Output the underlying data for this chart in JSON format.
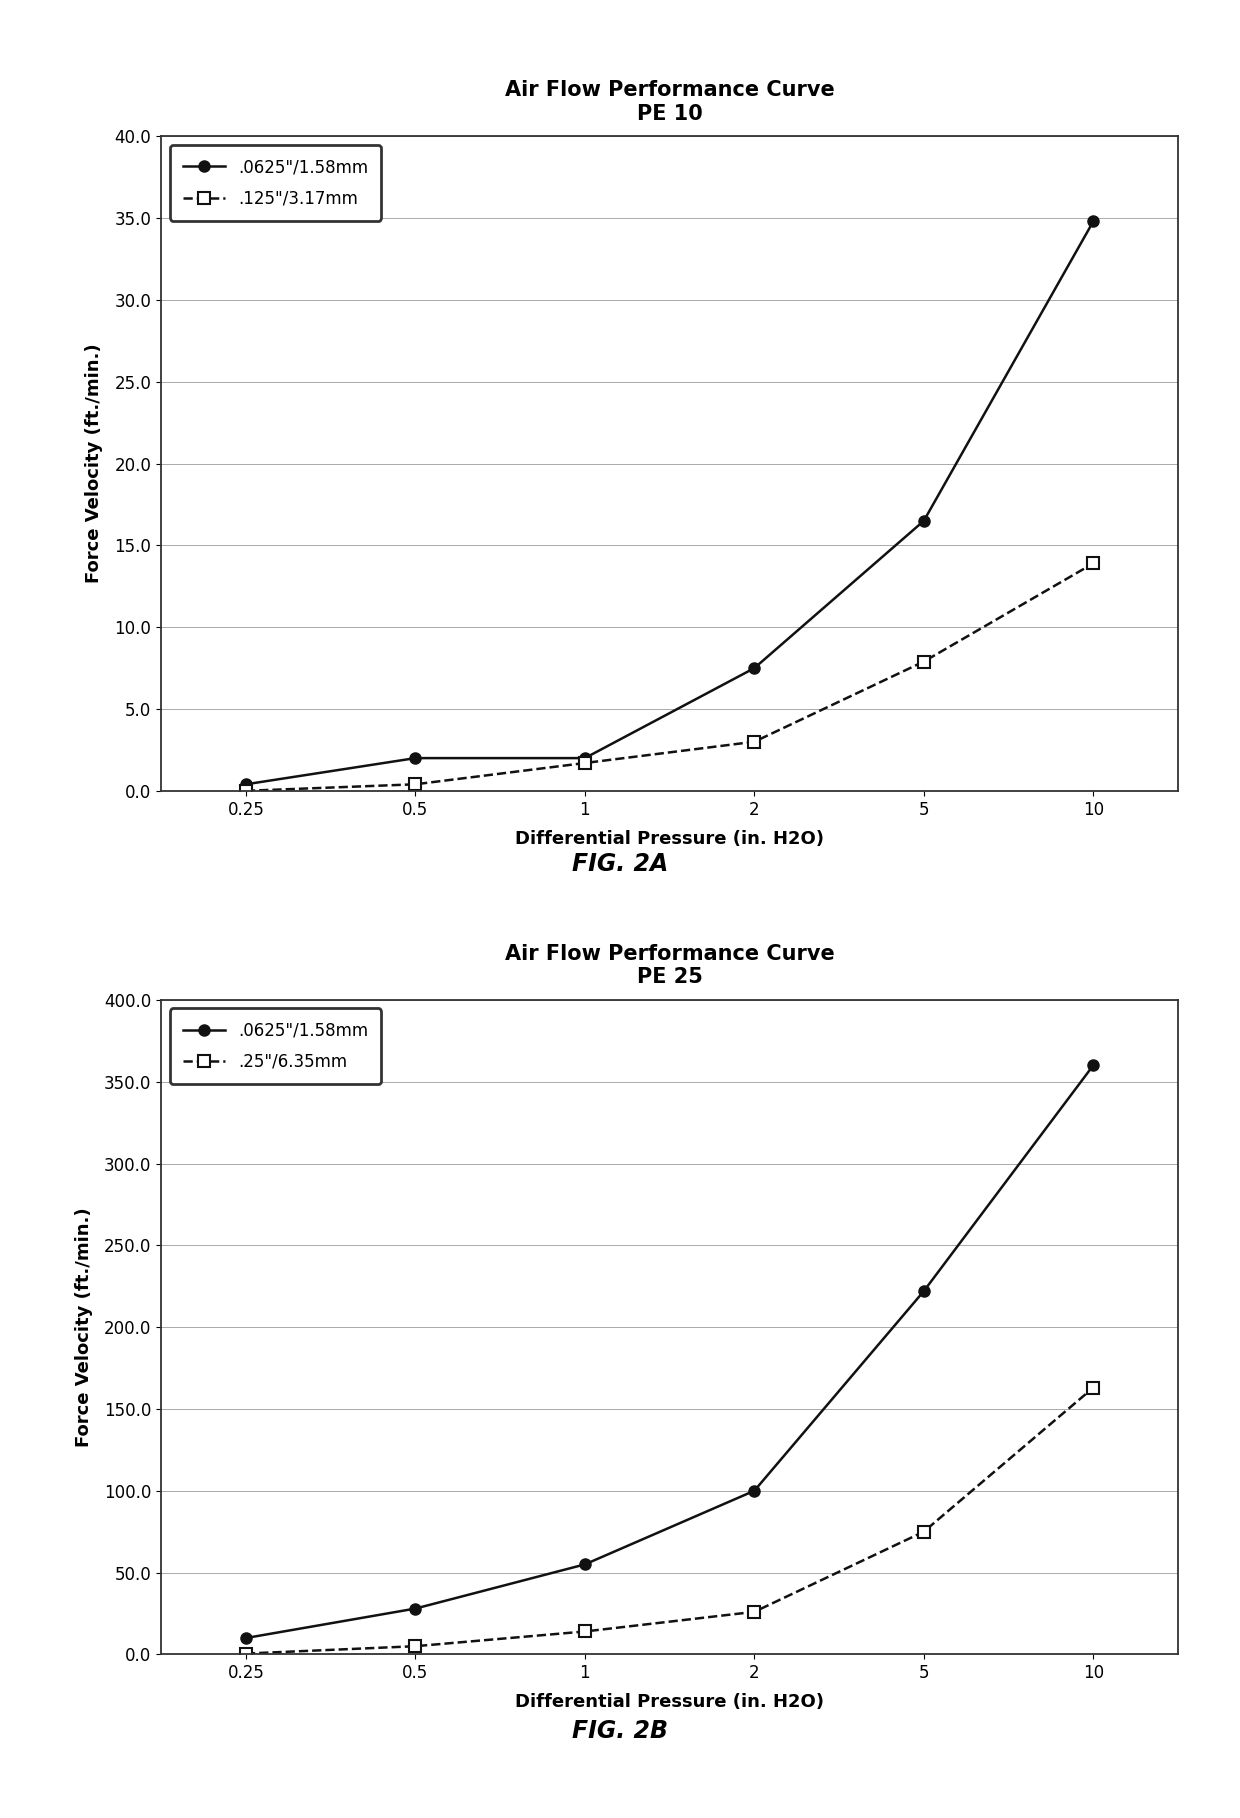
{
  "fig2a": {
    "title_line1": "Air Flow Performance Curve",
    "title_line2": "PE 10",
    "xlabel": "Differential Pressure (in. H2O)",
    "ylabel": "Force Velocity (ft./min.)",
    "figcaption": "FIG. 2A",
    "x_positions": [
      1,
      2,
      3,
      4,
      5,
      6
    ],
    "x_labels": [
      "0.25",
      "0.5",
      "1",
      "2",
      "5",
      "10"
    ],
    "series1": {
      "label": ".0625\"/1.58mm",
      "y": [
        0.4,
        2.0,
        2.0,
        7.5,
        16.5,
        34.8
      ],
      "marker": "o",
      "linestyle": "-"
    },
    "series2": {
      "label": ".125\"/3.17mm",
      "y": [
        0.0,
        0.4,
        1.7,
        3.0,
        7.9,
        13.9
      ],
      "marker": "s",
      "linestyle": "--"
    },
    "xlim": [
      0.5,
      6.5
    ],
    "ylim": [
      0,
      40
    ],
    "yticks": [
      0.0,
      5.0,
      10.0,
      15.0,
      20.0,
      25.0,
      30.0,
      35.0,
      40.0
    ]
  },
  "fig2b": {
    "title_line1": "Air Flow Performance Curve",
    "title_line2": "PE 25",
    "xlabel": "Differential Pressure (in. H2O)",
    "ylabel": "Force Velocity (ft./min.)",
    "figcaption": "FIG. 2B",
    "x_positions": [
      1,
      2,
      3,
      4,
      5,
      6
    ],
    "x_labels": [
      "0.25",
      "0.5",
      "1",
      "2",
      "5",
      "10"
    ],
    "series1": {
      "label": ".0625\"/1.58mm",
      "y": [
        10.0,
        28.0,
        55.0,
        100.0,
        222.0,
        360.0
      ],
      "marker": "o",
      "linestyle": "-"
    },
    "series2": {
      "label": ".25\"/6.35mm",
      "y": [
        0.5,
        5.0,
        14.0,
        26.0,
        75.0,
        163.0
      ],
      "marker": "s",
      "linestyle": "--"
    },
    "xlim": [
      0.5,
      6.5
    ],
    "ylim": [
      0,
      400
    ],
    "yticks": [
      0.0,
      50.0,
      100.0,
      150.0,
      200.0,
      250.0,
      300.0,
      350.0,
      400.0
    ]
  },
  "line_color": "#111111",
  "background_color": "#ffffff",
  "title_fontsize": 15,
  "label_fontsize": 13,
  "tick_fontsize": 12,
  "legend_fontsize": 12,
  "caption_fontsize": 17,
  "marker_size": 8,
  "linewidth": 1.8
}
